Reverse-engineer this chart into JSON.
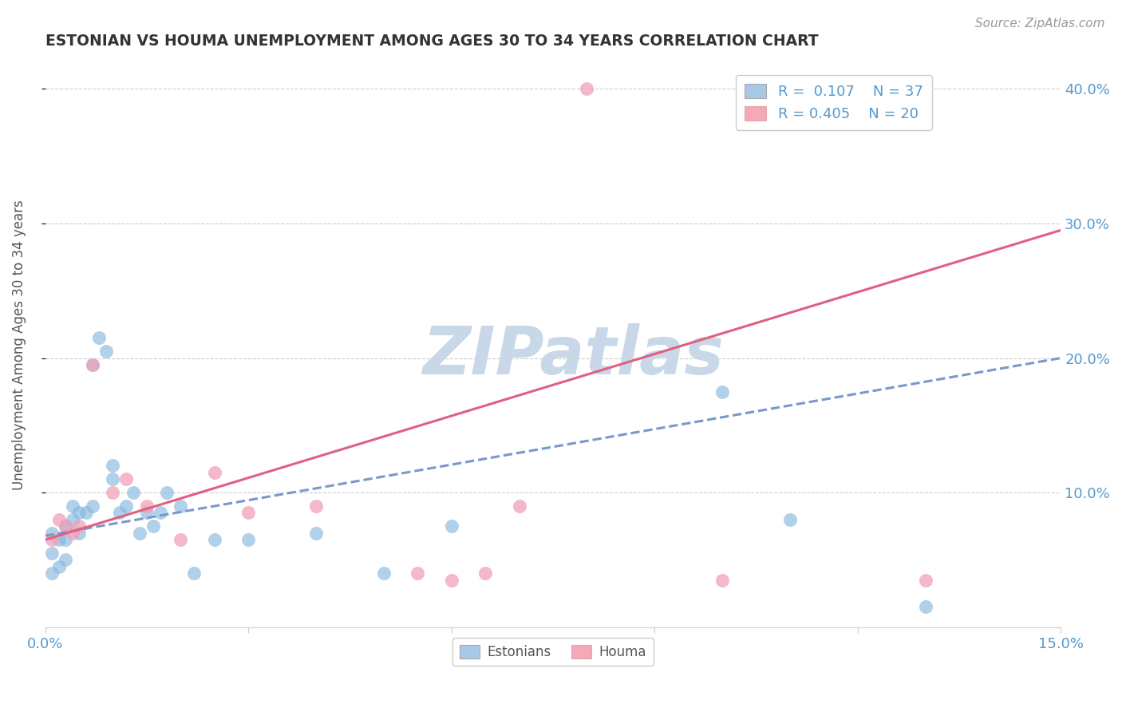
{
  "title": "ESTONIAN VS HOUMA UNEMPLOYMENT AMONG AGES 30 TO 34 YEARS CORRELATION CHART",
  "source_text": "Source: ZipAtlas.com",
  "ylabel": "Unemployment Among Ages 30 to 34 years",
  "xlim": [
    0.0,
    0.15
  ],
  "ylim": [
    0.0,
    0.42
  ],
  "xticks": [
    0.0,
    0.03,
    0.06,
    0.09,
    0.12,
    0.15
  ],
  "xtick_labels": [
    "0.0%",
    "",
    "",
    "",
    "",
    "15.0%"
  ],
  "ytick_labels_right": [
    "10.0%",
    "20.0%",
    "30.0%",
    "40.0%"
  ],
  "ytick_positions_right": [
    0.1,
    0.2,
    0.3,
    0.4
  ],
  "background_color": "#ffffff",
  "watermark_text": "ZIPatlas",
  "watermark_color": "#c8d8e8",
  "legend_R1": "R =  0.107",
  "legend_N1": "N = 37",
  "legend_R2": "R = 0.405",
  "legend_N2": "N = 20",
  "legend_color1": "#a8c8e8",
  "legend_color2": "#f4a8b8",
  "estonian_color": "#88b8e0",
  "houma_color": "#f0a0b8",
  "trend_estonian_color": "#7799cc",
  "trend_houma_color": "#e06080",
  "title_color": "#333333",
  "axis_label_color": "#555555",
  "right_tick_color": "#5599cc",
  "bottom_tick_color": "#5599cc",
  "grid_color": "#cccccc",
  "estonian_x": [
    0.001,
    0.001,
    0.002,
    0.002,
    0.003,
    0.003,
    0.003,
    0.004,
    0.004,
    0.005,
    0.005,
    0.006,
    0.007,
    0.007,
    0.008,
    0.009,
    0.01,
    0.01,
    0.011,
    0.012,
    0.013,
    0.014,
    0.015,
    0.016,
    0.017,
    0.018,
    0.02,
    0.022,
    0.025,
    0.03,
    0.04,
    0.05,
    0.06,
    0.1,
    0.11,
    0.13,
    0.001
  ],
  "estonian_y": [
    0.055,
    0.07,
    0.065,
    0.045,
    0.05,
    0.065,
    0.075,
    0.08,
    0.09,
    0.07,
    0.085,
    0.085,
    0.09,
    0.195,
    0.215,
    0.205,
    0.11,
    0.12,
    0.085,
    0.09,
    0.1,
    0.07,
    0.085,
    0.075,
    0.085,
    0.1,
    0.09,
    0.04,
    0.065,
    0.065,
    0.07,
    0.04,
    0.075,
    0.175,
    0.08,
    0.015,
    0.04
  ],
  "houma_x": [
    0.001,
    0.002,
    0.003,
    0.004,
    0.005,
    0.007,
    0.01,
    0.012,
    0.015,
    0.02,
    0.025,
    0.03,
    0.04,
    0.055,
    0.06,
    0.065,
    0.07,
    0.08,
    0.1,
    0.13
  ],
  "houma_y": [
    0.065,
    0.08,
    0.075,
    0.07,
    0.075,
    0.195,
    0.1,
    0.11,
    0.09,
    0.065,
    0.115,
    0.085,
    0.09,
    0.04,
    0.035,
    0.04,
    0.09,
    0.4,
    0.035,
    0.035
  ],
  "trend_estonian_x0": 0.0,
  "trend_estonian_x1": 0.15,
  "trend_estonian_y0": 0.068,
  "trend_estonian_y1": 0.2,
  "trend_houma_x0": 0.0,
  "trend_houma_x1": 0.15,
  "trend_houma_y0": 0.065,
  "trend_houma_y1": 0.295
}
